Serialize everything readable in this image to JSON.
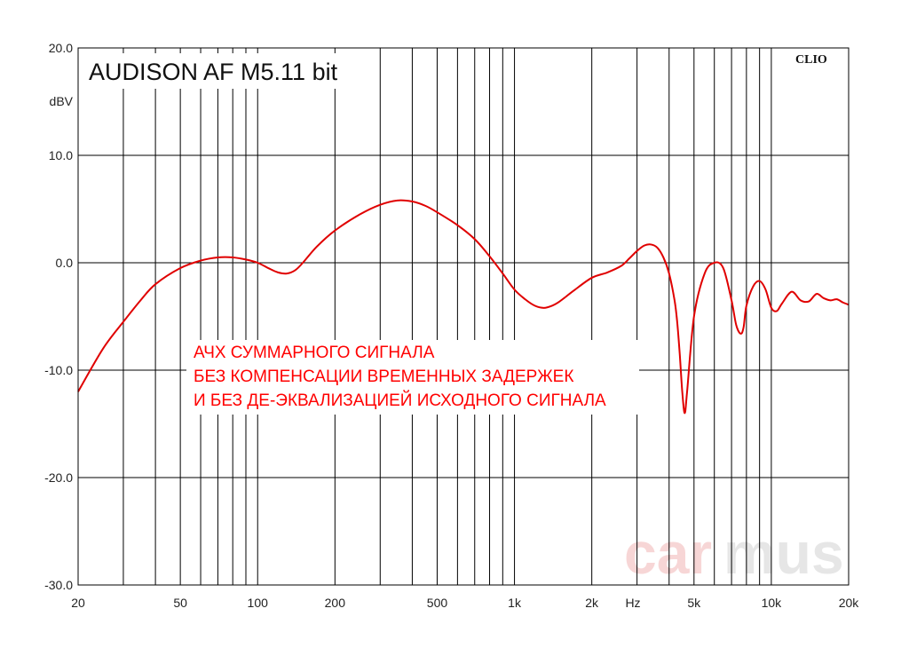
{
  "chart_data": {
    "type": "line",
    "title": "AUDISON AF M5.11 bit",
    "brand": "CLIO",
    "ylabel": "dBV",
    "xunit_label": "Hz",
    "xscale": "log",
    "xlim": [
      20,
      20000
    ],
    "ylim": [
      -30,
      20
    ],
    "grid": true,
    "x_tick_labels": [
      {
        "value": 20,
        "label": "20"
      },
      {
        "value": 50,
        "label": "50"
      },
      {
        "value": 100,
        "label": "100"
      },
      {
        "value": 200,
        "label": "200"
      },
      {
        "value": 500,
        "label": "500"
      },
      {
        "value": 1000,
        "label": "1k"
      },
      {
        "value": 2000,
        "label": "2k"
      },
      {
        "value": 5000,
        "label": "5k"
      },
      {
        "value": 10000,
        "label": "10k"
      },
      {
        "value": 20000,
        "label": "20k"
      }
    ],
    "y_tick_labels": [
      {
        "value": 20,
        "label": "20.0"
      },
      {
        "value": 10,
        "label": "10.0"
      },
      {
        "value": 0,
        "label": "0.0"
      },
      {
        "value": -10,
        "label": "-10.0"
      },
      {
        "value": -20,
        "label": "-20.0"
      },
      {
        "value": -30,
        "label": "-30.0"
      }
    ],
    "annotation_lines": [
      "АЧХ СУММАРНОГО СИГНАЛА",
      "БЕЗ КОМПЕНСАЦИИ ВРЕМЕННЫХ ЗАДЕРЖЕК",
      "И БЕЗ ДЕ-ЭКВАЛИЗАЦИЕЙ ИСХОДНОГО СИГНАЛА"
    ],
    "watermark": {
      "part1": "car",
      "part2": "mus"
    },
    "series": [
      {
        "color": "#e00000",
        "x": [
          20,
          25,
          30,
          35,
          40,
          50,
          60,
          70,
          80,
          90,
          100,
          110,
          120,
          130,
          140,
          150,
          170,
          200,
          250,
          300,
          350,
          400,
          450,
          500,
          600,
          700,
          800,
          900,
          1000,
          1100,
          1200,
          1300,
          1400,
          1500,
          1700,
          2000,
          2300,
          2600,
          2800,
          3000,
          3200,
          3400,
          3600,
          3800,
          4000,
          4200,
          4300,
          4400,
          4500,
          4600,
          4700,
          5000,
          5500,
          6000,
          6500,
          7000,
          7300,
          7600,
          7800,
          8000,
          8500,
          9000,
          9500,
          10000,
          10500,
          11000,
          12000,
          13000,
          14000,
          15000,
          16000,
          17000,
          18000,
          19000,
          20000
        ],
        "y": [
          -12,
          -8,
          -5.5,
          -3.5,
          -2,
          -0.5,
          0.2,
          0.5,
          0.5,
          0.3,
          0,
          -0.5,
          -0.9,
          -1,
          -0.7,
          0,
          1.5,
          3,
          4.5,
          5.4,
          5.8,
          5.7,
          5.3,
          4.7,
          3.5,
          2.2,
          0.6,
          -1,
          -2.5,
          -3.4,
          -4,
          -4.2,
          -4,
          -3.6,
          -2.6,
          -1.4,
          -0.9,
          -0.3,
          0.4,
          1.1,
          1.6,
          1.7,
          1.4,
          0.5,
          -1,
          -3.5,
          -5.5,
          -8.5,
          -12,
          -14,
          -12,
          -5,
          -1,
          0,
          -0.5,
          -3.5,
          -5.8,
          -6.6,
          -6,
          -4,
          -2.2,
          -1.7,
          -2.5,
          -4.2,
          -4.5,
          -3.8,
          -2.7,
          -3.5,
          -3.6,
          -2.9,
          -3.3,
          -3.5,
          -3.4,
          -3.7,
          -3.9
        ]
      }
    ]
  }
}
